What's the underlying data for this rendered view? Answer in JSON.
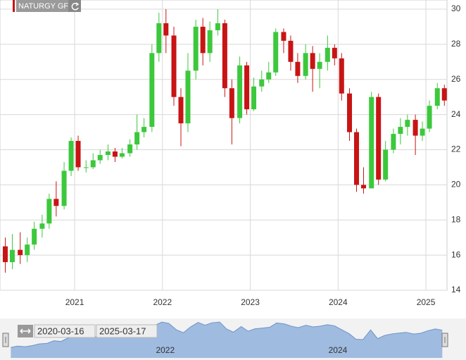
{
  "chart_data": {
    "type": "candlestick",
    "label": "NATURGY GF",
    "up_color": "#3cc83c",
    "down_color": "#c81414",
    "grid": true,
    "xlim": [
      2020.15,
      2025.24
    ],
    "xticks": [
      2021,
      2022,
      2023,
      2024,
      2025
    ],
    "ylim": [
      14,
      30
    ],
    "yticks": [
      14,
      16,
      18,
      20,
      22,
      24,
      26,
      28,
      30
    ],
    "candles": {
      "x": [
        2020.21,
        2020.29,
        2020.38,
        2020.46,
        2020.54,
        2020.63,
        2020.71,
        2020.79,
        2020.88,
        2020.96,
        2021.04,
        2021.13,
        2021.21,
        2021.29,
        2021.38,
        2021.46,
        2021.54,
        2021.63,
        2021.71,
        2021.79,
        2021.88,
        2021.96,
        2022.04,
        2022.13,
        2022.21,
        2022.29,
        2022.38,
        2022.46,
        2022.54,
        2022.63,
        2022.71,
        2022.79,
        2022.88,
        2022.96,
        2023.04,
        2023.13,
        2023.21,
        2023.29,
        2023.38,
        2023.46,
        2023.54,
        2023.63,
        2023.71,
        2023.79,
        2023.88,
        2023.96,
        2024.04,
        2024.13,
        2024.21,
        2024.29,
        2024.38,
        2024.46,
        2024.54,
        2024.63,
        2024.71,
        2024.79,
        2024.88,
        2024.96,
        2025.04,
        2025.13,
        2025.21
      ],
      "open": [
        16.5,
        15.6,
        16.3,
        16.0,
        16.6,
        17.5,
        17.8,
        19.2,
        18.8,
        20.8,
        22.5,
        21.0,
        21.0,
        21.4,
        21.7,
        21.9,
        21.6,
        21.8,
        22.3,
        23.0,
        23.3,
        27.5,
        29.2,
        28.5,
        25.0,
        23.5,
        26.5,
        29.0,
        27.5,
        28.8,
        29.2,
        25.5,
        23.8,
        26.8,
        24.3,
        25.6,
        26.0,
        26.4,
        28.7,
        28.2,
        27.0,
        26.2,
        27.5,
        26.6,
        27.0,
        27.8,
        27.2,
        25.2,
        23.0,
        20.0,
        19.8,
        25.0,
        20.3,
        22.0,
        22.9,
        23.3,
        23.7,
        22.8,
        23.2,
        24.5,
        25.5
      ],
      "high": [
        17.0,
        17.2,
        17.3,
        17.0,
        17.9,
        18.3,
        19.5,
        20.2,
        21.3,
        22.7,
        22.8,
        21.4,
        21.8,
        22.0,
        22.3,
        22.1,
        22.1,
        22.6,
        24.0,
        23.8,
        28.0,
        29.8,
        30.0,
        29.0,
        25.5,
        27.5,
        29.4,
        29.5,
        29.3,
        30.0,
        29.4,
        26.0,
        27.3,
        27.0,
        26.1,
        26.5,
        27.0,
        28.9,
        28.9,
        28.5,
        27.5,
        28.0,
        27.9,
        27.5,
        28.5,
        28.0,
        27.5,
        25.5,
        23.2,
        21.0,
        25.3,
        25.2,
        22.5,
        23.2,
        23.8,
        24.0,
        24.0,
        23.6,
        24.8,
        25.8,
        25.7
      ],
      "low": [
        15.0,
        15.2,
        15.5,
        15.6,
        16.3,
        17.0,
        17.5,
        18.2,
        18.6,
        20.5,
        20.8,
        20.7,
        20.9,
        21.2,
        21.4,
        21.3,
        21.5,
        21.6,
        22.0,
        22.7,
        23.0,
        27.0,
        27.5,
        24.5,
        22.2,
        23.0,
        26.0,
        26.8,
        27.0,
        28.5,
        25.0,
        22.3,
        23.5,
        24.0,
        24.2,
        25.3,
        25.8,
        26.2,
        27.5,
        26.5,
        25.8,
        26.0,
        25.3,
        25.5,
        26.5,
        26.8,
        24.8,
        22.5,
        19.6,
        19.5,
        19.8,
        20.0,
        20.2,
        21.8,
        22.3,
        22.8,
        21.7,
        22.5,
        23.0,
        24.3,
        24.5
      ],
      "close": [
        15.6,
        16.3,
        16.0,
        16.6,
        17.5,
        17.8,
        19.2,
        18.8,
        20.8,
        22.5,
        21.0,
        21.0,
        21.4,
        21.7,
        21.9,
        21.6,
        21.8,
        22.3,
        23.0,
        23.3,
        27.5,
        29.2,
        28.5,
        25.0,
        23.5,
        26.5,
        29.0,
        27.5,
        28.8,
        29.2,
        25.5,
        23.8,
        26.8,
        24.3,
        25.6,
        26.0,
        26.4,
        28.7,
        28.2,
        27.0,
        26.2,
        27.5,
        26.6,
        27.0,
        27.8,
        27.2,
        25.2,
        23.0,
        20.0,
        19.8,
        25.0,
        20.3,
        22.0,
        22.9,
        23.3,
        23.7,
        22.8,
        23.2,
        24.5,
        25.5,
        24.8
      ]
    },
    "navigator": {
      "from": "2020-03-16",
      "to": "2025-03-17",
      "xticks": [
        2022,
        2024
      ]
    }
  }
}
